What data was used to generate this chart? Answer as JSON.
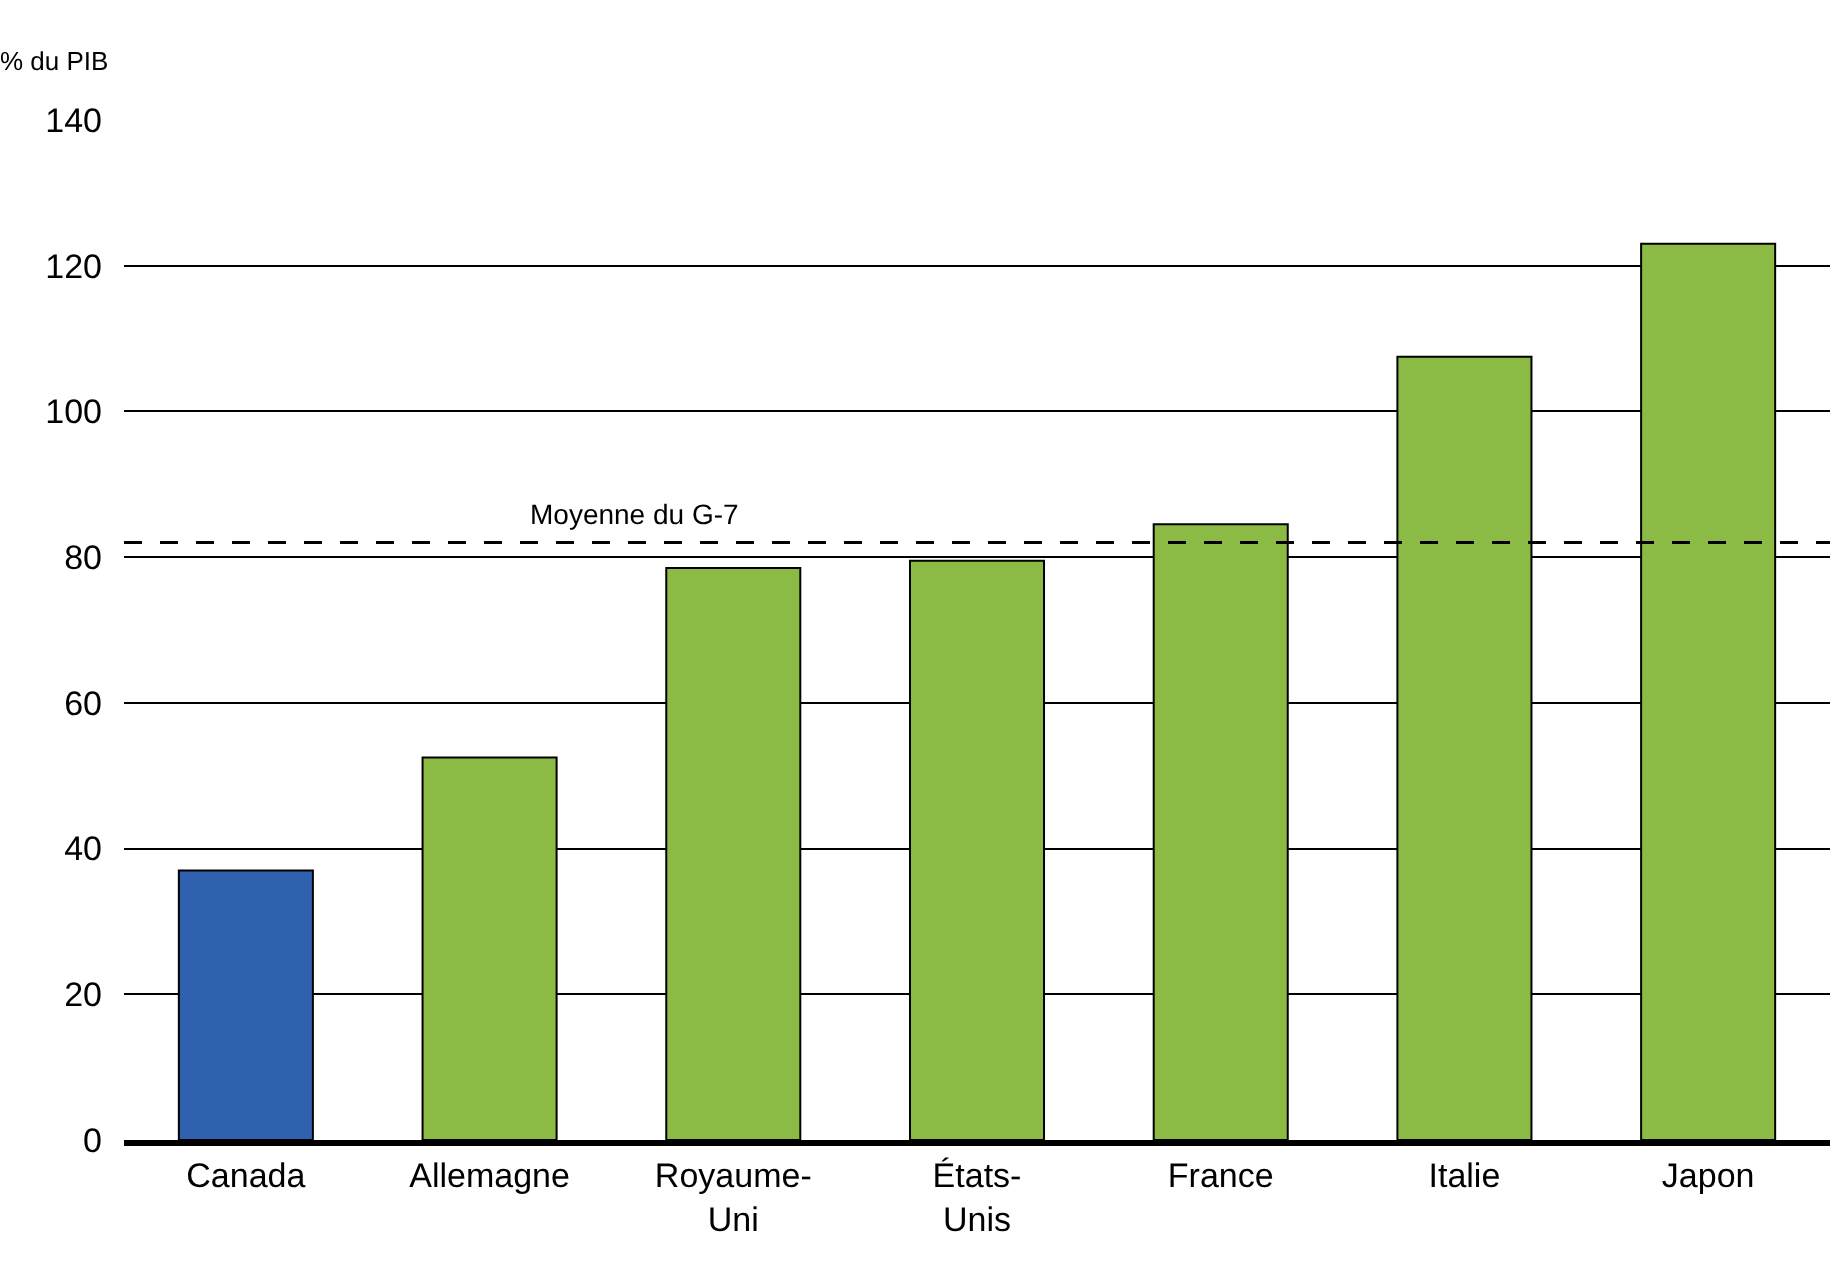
{
  "chart_data": {
    "type": "bar",
    "ylabel": "% du PIB",
    "categories": [
      "Canada",
      "Allemagne",
      "Royaume-Uni",
      "États-Unis",
      "France",
      "Italie",
      "Japon"
    ],
    "values": [
      37,
      52.5,
      78.5,
      79.5,
      84.5,
      107.5,
      123
    ],
    "colors": [
      "#3061ae",
      "#8cbb45",
      "#8cbb45",
      "#8cbb45",
      "#8cbb45",
      "#8cbb45",
      "#8cbb45"
    ],
    "ylim": [
      0,
      140
    ],
    "yticks": [
      0,
      20,
      40,
      60,
      80,
      100,
      120,
      140
    ],
    "grid": "y",
    "ref_lines": [
      {
        "axis": "y",
        "value": 82,
        "label": "Moyenne du G-7",
        "line_style": "dashed",
        "color": "#000000"
      }
    ]
  }
}
